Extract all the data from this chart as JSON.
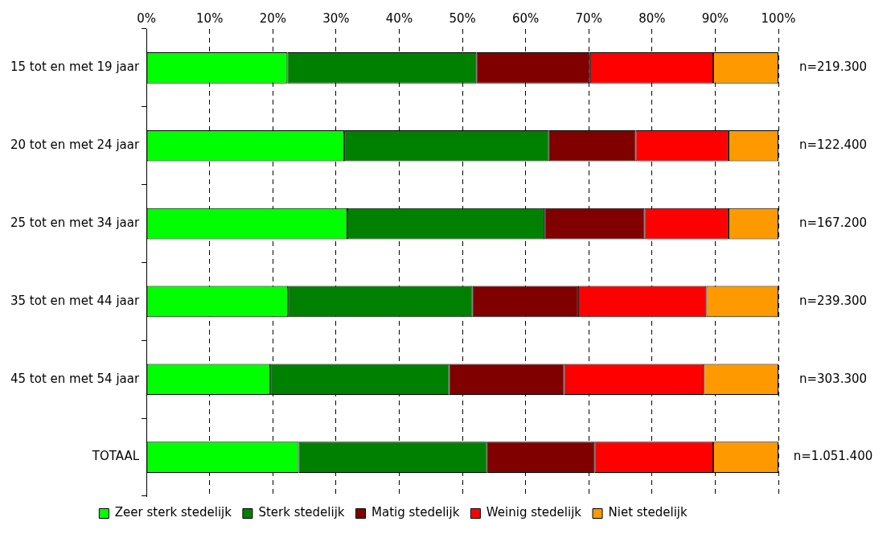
{
  "chart_data": {
    "type": "bar",
    "orientation": "horizontal",
    "stacked": true,
    "categories": [
      "15 tot en met 19 jaar",
      "20 tot en met 24 jaar",
      "25 tot en met 34 jaar",
      "35 tot en met 44 jaar",
      "45 tot en met 54 jaar",
      "TOTAAL"
    ],
    "series": [
      {
        "name": "Zeer sterk stedelijk",
        "color": "#00ff00",
        "values": [
          22.3,
          31.3,
          31.8,
          22.4,
          19.6,
          24.1
        ]
      },
      {
        "name": "Sterk stedelijk",
        "color": "#008000",
        "values": [
          29.9,
          32.4,
          31.2,
          29.2,
          28.3,
          29.8
        ]
      },
      {
        "name": "Matig stedelijk",
        "color": "#800000",
        "values": [
          18.0,
          13.7,
          15.8,
          16.7,
          18.2,
          17.0
        ]
      },
      {
        "name": "Weinig stedelijk",
        "color": "#ff0000",
        "values": [
          19.5,
          14.7,
          13.3,
          20.3,
          22.1,
          18.8
        ]
      },
      {
        "name": "Niet stedelijk",
        "color": "#ff9900",
        "values": [
          10.3,
          7.9,
          7.9,
          11.4,
          11.8,
          10.3
        ]
      }
    ],
    "xlim": [
      0,
      100
    ],
    "xticks": [
      {
        "value": 0,
        "label": "0%"
      },
      {
        "value": 10,
        "label": "10%"
      },
      {
        "value": 20,
        "label": "20%"
      },
      {
        "value": 30,
        "label": "30%"
      },
      {
        "value": 40,
        "label": "40%"
      },
      {
        "value": 50,
        "label": "50%"
      },
      {
        "value": 60,
        "label": "60%"
      },
      {
        "value": 70,
        "label": "70%"
      },
      {
        "value": 80,
        "label": "80%"
      },
      {
        "value": 90,
        "label": "90%"
      },
      {
        "value": 100,
        "label": "100%"
      }
    ],
    "grid": "x",
    "legend": "bottom",
    "annotations": [
      "n=219.300",
      "n=122.400",
      "n=167.200",
      "n=239.300",
      "n=303.300",
      "n=1.051.400"
    ]
  }
}
